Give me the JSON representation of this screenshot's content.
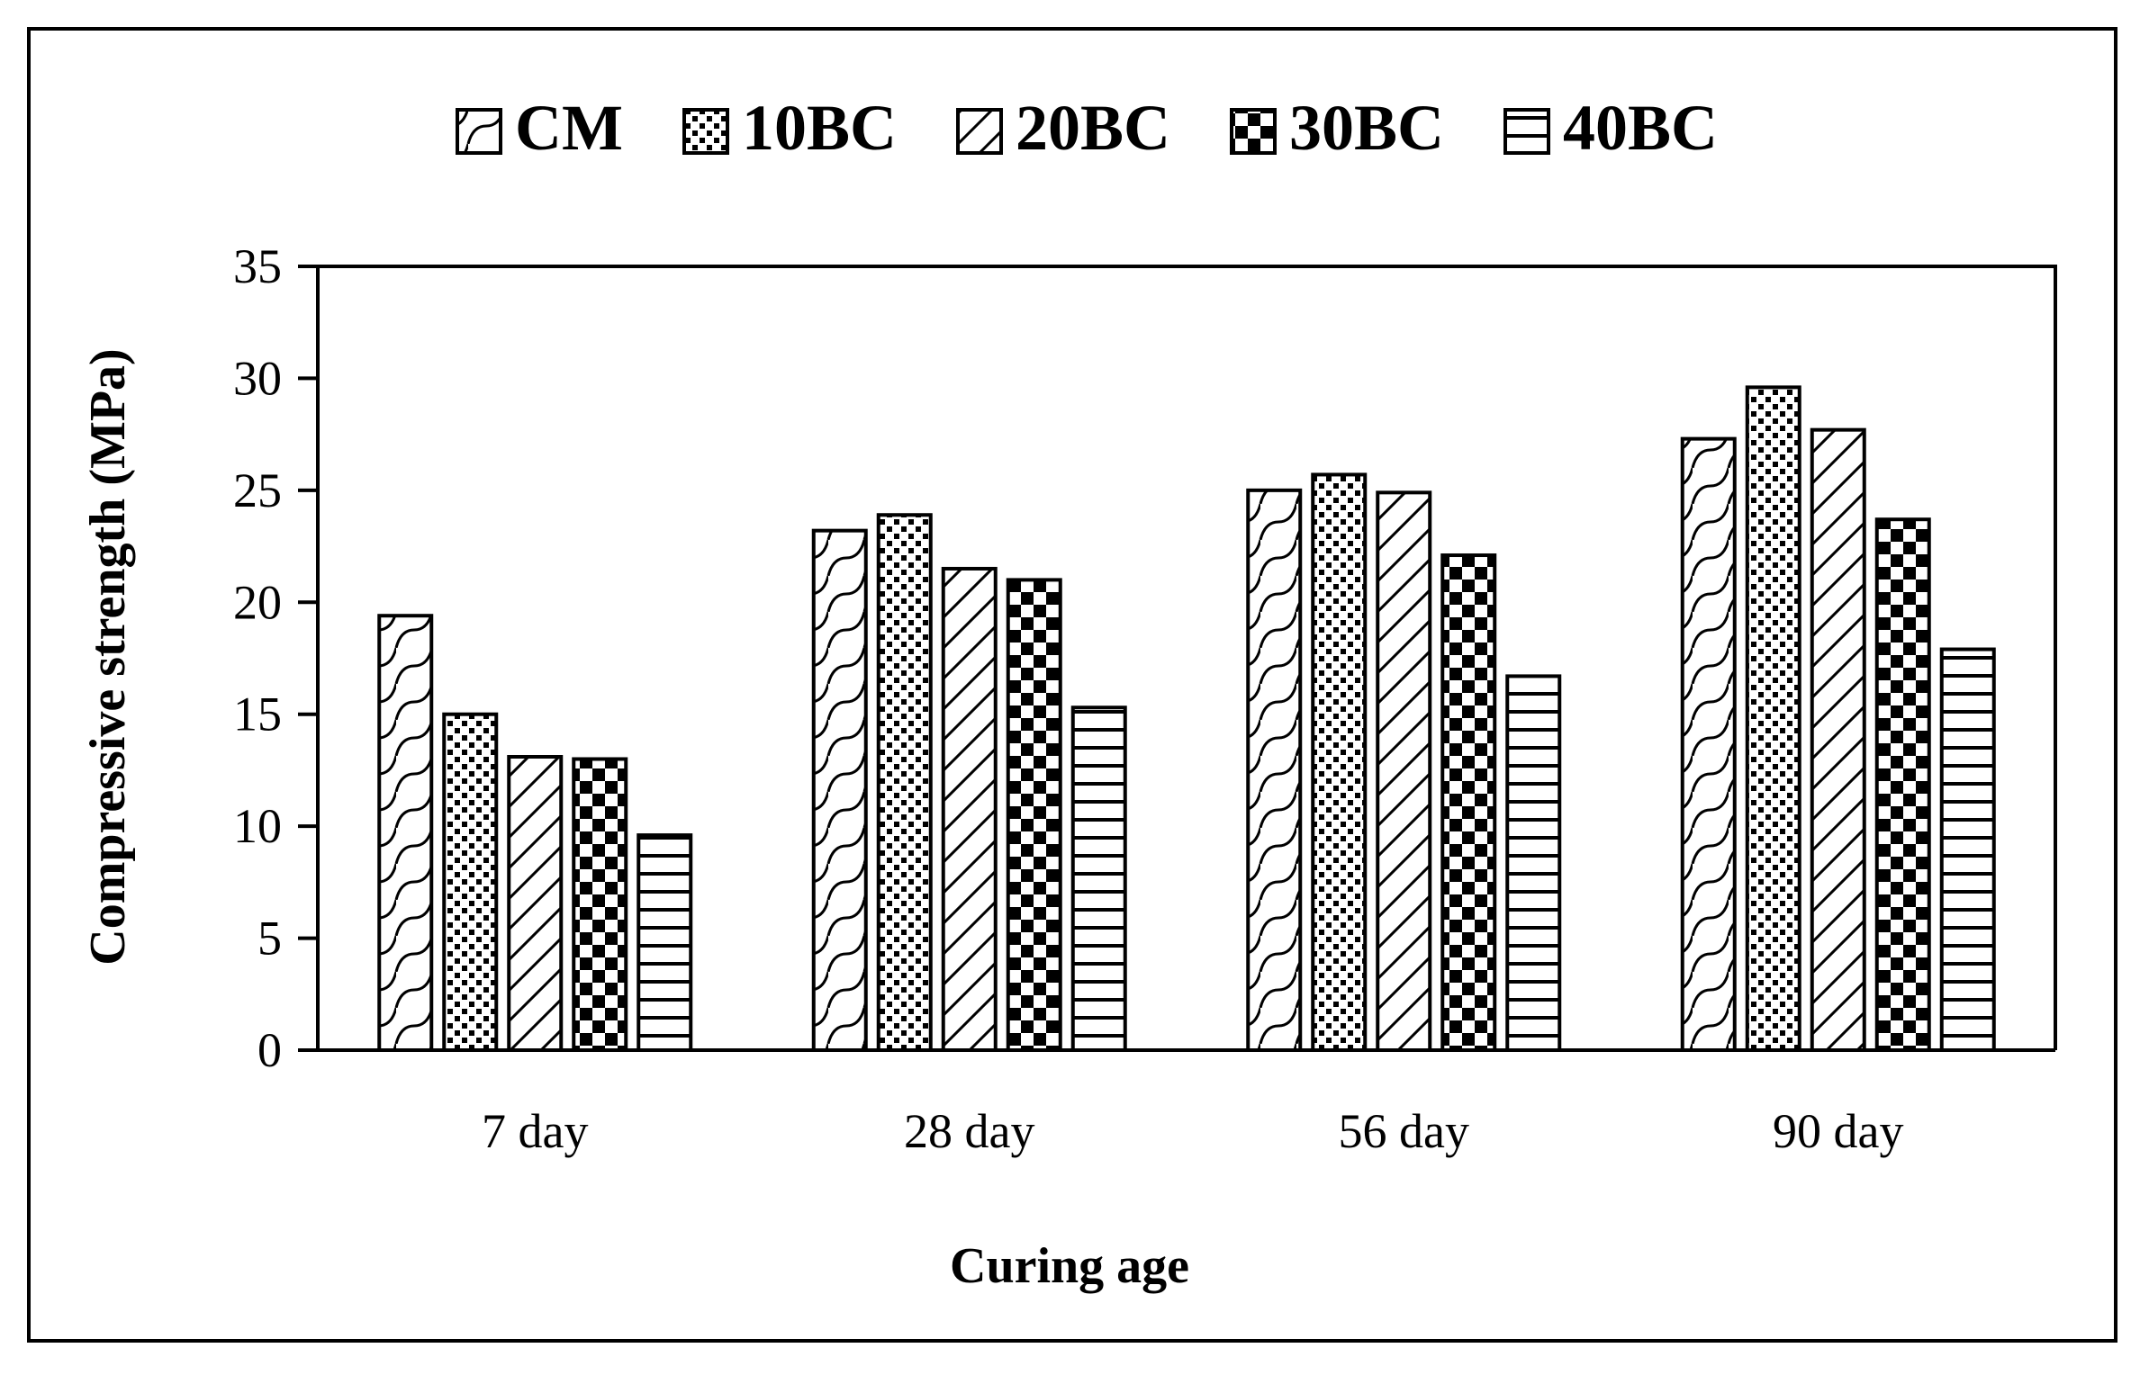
{
  "chart_data": {
    "type": "bar",
    "title": "",
    "xlabel": "Curing age",
    "ylabel": "Compressive strength (MPa)",
    "ylim": [
      0,
      35
    ],
    "yticks": [
      0,
      5,
      10,
      15,
      20,
      25,
      30,
      35
    ],
    "grid": false,
    "legend_position": "top",
    "categories": [
      "7 day",
      "28 day",
      "56 day",
      "90 day"
    ],
    "series": [
      {
        "name": "CM",
        "pattern": "wave-diagonal",
        "values": [
          19.4,
          23.2,
          25.0,
          27.3
        ]
      },
      {
        "name": "10BC",
        "pattern": "dots",
        "values": [
          15.0,
          23.9,
          25.7,
          29.6
        ]
      },
      {
        "name": "20BC",
        "pattern": "diagonal-lines",
        "values": [
          13.1,
          21.5,
          24.9,
          27.7
        ]
      },
      {
        "name": "30BC",
        "pattern": "checkerboard",
        "values": [
          13.0,
          21.0,
          22.1,
          23.7
        ]
      },
      {
        "name": "40BC",
        "pattern": "horizontal-lines",
        "values": [
          9.6,
          15.3,
          16.7,
          17.9
        ]
      }
    ],
    "colors": {
      "fill_background": "#ffffff",
      "pattern_ink": "#000000"
    }
  }
}
